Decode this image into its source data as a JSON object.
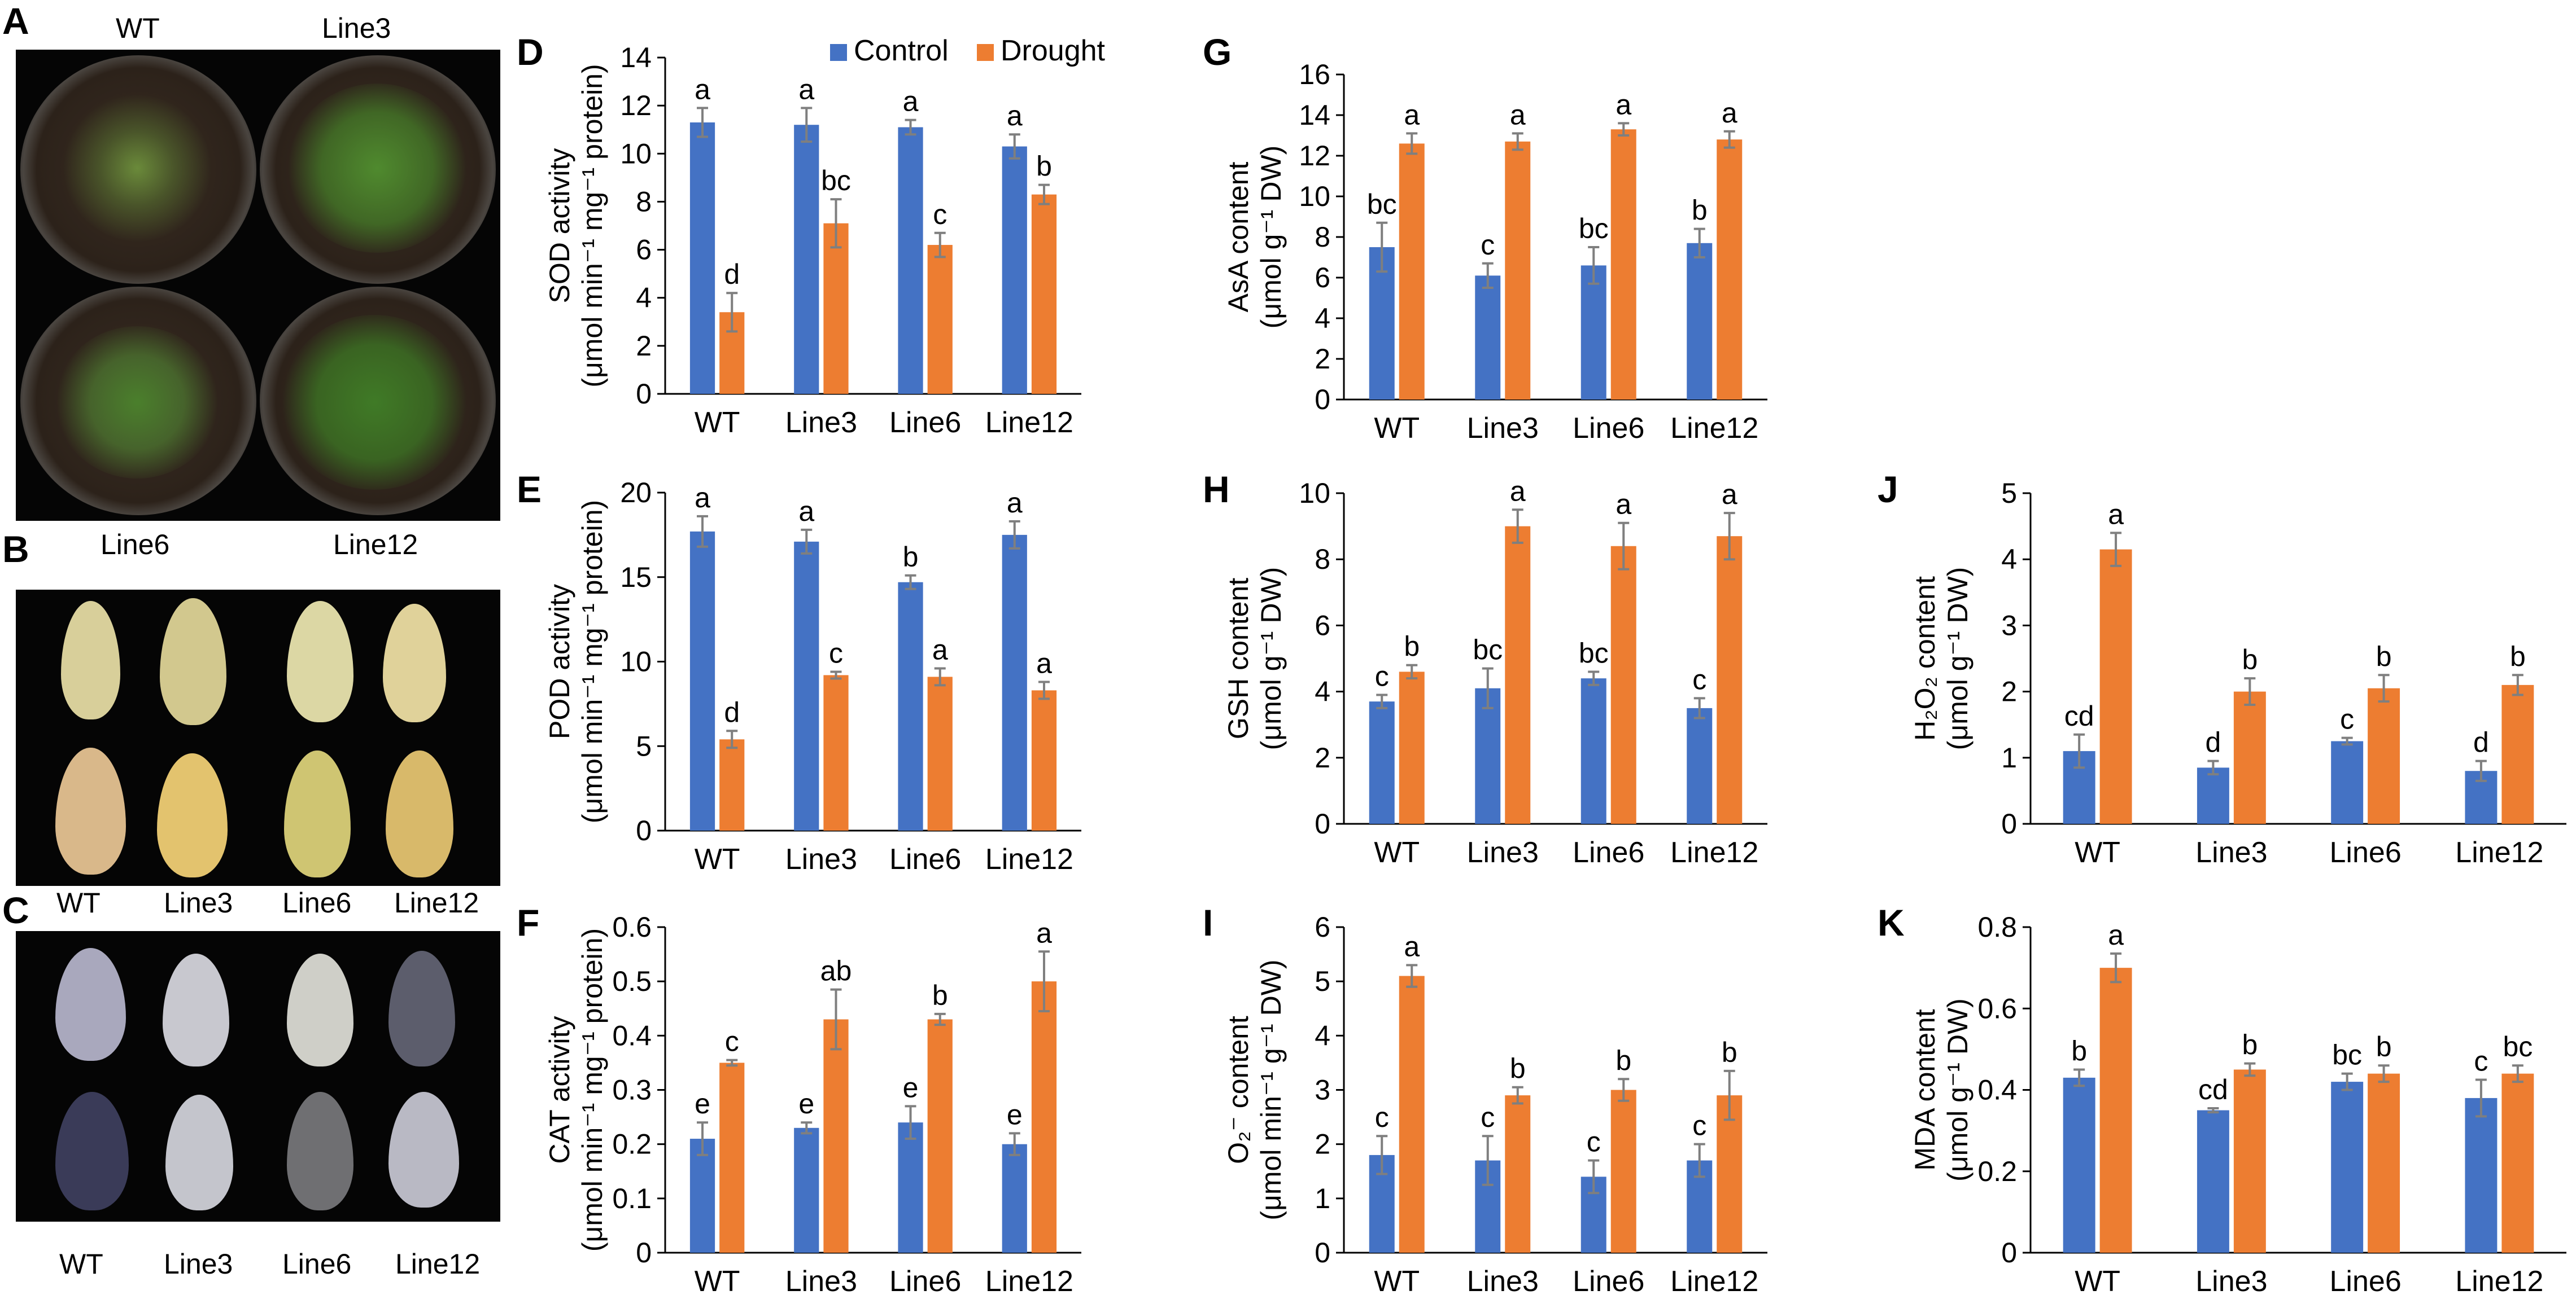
{
  "figure": {
    "panel_letters": [
      "A",
      "B",
      "C",
      "D",
      "E",
      "F",
      "G",
      "H",
      "I",
      "J",
      "K"
    ],
    "panel_a": {
      "labels": [
        "WT",
        "Line3",
        "Line6",
        "Line12"
      ]
    },
    "panel_b": {
      "labels": [
        "WT",
        "Line3",
        "Line6",
        "Line12"
      ]
    },
    "panel_c": {
      "labels": [
        "WT",
        "Line3",
        "Line6",
        "Line12"
      ]
    }
  },
  "colors": {
    "control": "#4472C4",
    "drought": "#ED7D31",
    "error_bar": "#7F7F7F"
  },
  "legend": {
    "control": "Control",
    "drought": "Drought"
  },
  "chart_data": [
    {
      "id": "D",
      "type": "bar",
      "categories": [
        "WT",
        "Line3",
        "Line6",
        "Line12"
      ],
      "ylabel_line1": "SOD activity",
      "ylabel_line2": "(μmol min⁻¹ mg⁻¹ protein)",
      "ylim": [
        0,
        14
      ],
      "yticks": [
        0,
        2,
        4,
        6,
        8,
        10,
        12,
        14
      ],
      "series": [
        {
          "name": "Control",
          "values": [
            11.3,
            11.2,
            11.1,
            10.3
          ],
          "errors": [
            0.6,
            0.7,
            0.3,
            0.5
          ],
          "letters": [
            "a",
            "a",
            "a",
            "a"
          ]
        },
        {
          "name": "Drought",
          "values": [
            3.4,
            7.1,
            6.2,
            8.3
          ],
          "errors": [
            0.8,
            1.0,
            0.5,
            0.4
          ],
          "letters": [
            "d",
            "bc",
            "c",
            "b"
          ]
        }
      ]
    },
    {
      "id": "E",
      "type": "bar",
      "categories": [
        "WT",
        "Line3",
        "Line6",
        "Line12"
      ],
      "ylabel_line1": "POD activity",
      "ylabel_line2": "(μmol min⁻¹ mg⁻¹ protein)",
      "ylim": [
        0,
        20
      ],
      "yticks": [
        0,
        5,
        10,
        15,
        20
      ],
      "series": [
        {
          "name": "Control",
          "values": [
            17.7,
            17.1,
            14.7,
            17.5
          ],
          "errors": [
            0.9,
            0.7,
            0.4,
            0.8
          ],
          "letters": [
            "a",
            "a",
            "b",
            "a"
          ]
        },
        {
          "name": "Drought",
          "values": [
            5.4,
            9.2,
            9.1,
            8.3
          ],
          "errors": [
            0.5,
            0.2,
            0.5,
            0.5
          ],
          "letters": [
            "d",
            "c",
            "a",
            "a"
          ]
        }
      ]
    },
    {
      "id": "F",
      "type": "bar",
      "categories": [
        "WT",
        "Line3",
        "Line6",
        "Line12"
      ],
      "ylabel_line1": "CAT activity",
      "ylabel_line2": "(μmol min⁻¹ mg⁻¹ protein)",
      "ylim": [
        0,
        0.6
      ],
      "yticks": [
        "0",
        "0.1",
        "0.2",
        "0.3",
        "0.4",
        "0.5",
        "0.6"
      ],
      "series": [
        {
          "name": "Control",
          "values": [
            0.21,
            0.23,
            0.24,
            0.2
          ],
          "errors": [
            0.03,
            0.01,
            0.03,
            0.02
          ],
          "letters": [
            "e",
            "e",
            "e",
            "e"
          ]
        },
        {
          "name": "Drought",
          "values": [
            0.35,
            0.43,
            0.43,
            0.5
          ],
          "errors": [
            0.005,
            0.055,
            0.01,
            0.055
          ],
          "letters": [
            "c",
            "ab",
            "b",
            "a"
          ]
        }
      ]
    },
    {
      "id": "G",
      "type": "bar",
      "categories": [
        "WT",
        "Line3",
        "Line6",
        "Line12"
      ],
      "ylabel_line1": "AsA content",
      "ylabel_line2": "(μmol g⁻¹ DW)",
      "ylim": [
        0,
        16
      ],
      "yticks": [
        0,
        2,
        4,
        6,
        8,
        10,
        12,
        14,
        16
      ],
      "series": [
        {
          "name": "Control",
          "values": [
            7.5,
            6.1,
            6.6,
            7.7
          ],
          "errors": [
            1.2,
            0.6,
            0.9,
            0.7
          ],
          "letters": [
            "bc",
            "c",
            "bc",
            "b"
          ]
        },
        {
          "name": "Drought",
          "values": [
            12.6,
            12.7,
            13.3,
            12.8
          ],
          "errors": [
            0.5,
            0.4,
            0.3,
            0.4
          ],
          "letters": [
            "a",
            "a",
            "a",
            "a"
          ]
        }
      ]
    },
    {
      "id": "H",
      "type": "bar",
      "categories": [
        "WT",
        "Line3",
        "Line6",
        "Line12"
      ],
      "ylabel_line1": "GSH content",
      "ylabel_line2": "(μmol g⁻¹ DW)",
      "ylim": [
        0,
        10
      ],
      "yticks": [
        0,
        2,
        4,
        6,
        8,
        10
      ],
      "series": [
        {
          "name": "Control",
          "values": [
            3.7,
            4.1,
            4.4,
            3.5
          ],
          "errors": [
            0.2,
            0.6,
            0.2,
            0.3
          ],
          "letters": [
            "c",
            "bc",
            "bc",
            "c"
          ]
        },
        {
          "name": "Drought",
          "values": [
            4.6,
            9.0,
            8.4,
            8.7
          ],
          "errors": [
            0.2,
            0.5,
            0.7,
            0.7
          ],
          "letters": [
            "b",
            "a",
            "a",
            "a"
          ]
        }
      ]
    },
    {
      "id": "I",
      "type": "bar",
      "categories": [
        "WT",
        "Line3",
        "Line6",
        "Line12"
      ],
      "ylabel_line1": "O₂⁻ content",
      "ylabel_line2": "(μmol min⁻¹ g⁻¹ DW)",
      "ylim": [
        0,
        6
      ],
      "yticks": [
        0,
        1,
        2,
        3,
        4,
        5,
        6
      ],
      "series": [
        {
          "name": "Control",
          "values": [
            1.8,
            1.7,
            1.4,
            1.7
          ],
          "errors": [
            0.35,
            0.45,
            0.3,
            0.3
          ],
          "letters": [
            "c",
            "c",
            "c",
            "c"
          ]
        },
        {
          "name": "Drought",
          "values": [
            5.1,
            2.9,
            3.0,
            2.9
          ],
          "errors": [
            0.2,
            0.15,
            0.2,
            0.45
          ],
          "letters": [
            "a",
            "b",
            "b",
            "b"
          ]
        }
      ]
    },
    {
      "id": "J",
      "type": "bar",
      "categories": [
        "WT",
        "Line3",
        "Line6",
        "Line12"
      ],
      "ylabel_line1": "H₂O₂ content",
      "ylabel_line2": "(μmol g⁻¹ DW)",
      "ylim": [
        0,
        5
      ],
      "yticks": [
        0,
        1,
        2,
        3,
        4,
        5
      ],
      "series": [
        {
          "name": "Control",
          "values": [
            1.1,
            0.85,
            1.25,
            0.8
          ],
          "errors": [
            0.25,
            0.1,
            0.05,
            0.15
          ],
          "letters": [
            "cd",
            "d",
            "c",
            "d"
          ]
        },
        {
          "name": "Drought",
          "values": [
            4.15,
            2.0,
            2.05,
            2.1
          ],
          "errors": [
            0.25,
            0.2,
            0.2,
            0.15
          ],
          "letters": [
            "a",
            "b",
            "b",
            "b"
          ]
        }
      ]
    },
    {
      "id": "K",
      "type": "bar",
      "categories": [
        "WT",
        "Line3",
        "Line6",
        "Line12"
      ],
      "ylabel_line1": "MDA content",
      "ylabel_line2": "(μmol g⁻¹ DW)",
      "ylim": [
        0,
        0.8
      ],
      "yticks": [
        "0",
        "0.2",
        "0.4",
        "0.6",
        "0.8"
      ],
      "series": [
        {
          "name": "Control",
          "values": [
            0.43,
            0.35,
            0.42,
            0.38
          ],
          "errors": [
            0.02,
            0.005,
            0.02,
            0.045
          ],
          "letters": [
            "b",
            "cd",
            "bc",
            "c"
          ]
        },
        {
          "name": "Drought",
          "values": [
            0.7,
            0.45,
            0.44,
            0.44
          ],
          "errors": [
            0.035,
            0.015,
            0.02,
            0.02
          ],
          "letters": [
            "a",
            "b",
            "b",
            "bc"
          ]
        }
      ]
    }
  ]
}
